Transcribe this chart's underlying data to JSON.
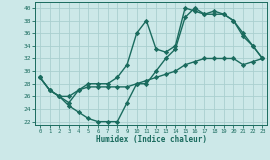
{
  "line1_x": [
    0,
    1,
    2,
    3,
    4,
    5,
    6,
    7,
    8,
    9,
    10,
    11,
    12,
    13,
    14,
    15,
    16,
    17,
    18,
    19,
    20,
    21,
    22,
    23
  ],
  "line1_y": [
    29,
    27,
    26,
    25,
    27,
    28,
    28,
    28,
    29,
    31,
    36,
    38,
    33.5,
    33,
    34,
    40,
    39.5,
    39,
    39.5,
    39,
    38,
    36,
    34,
    32
  ],
  "line2_x": [
    0,
    1,
    2,
    3,
    4,
    5,
    6,
    7,
    8,
    9,
    10,
    11,
    12,
    13,
    14,
    15,
    16,
    17,
    18,
    19,
    20,
    21,
    22,
    23
  ],
  "line2_y": [
    29,
    27,
    26,
    24.5,
    23.5,
    22.5,
    22,
    22,
    22,
    25,
    28,
    28,
    30,
    32,
    33.5,
    38.5,
    40,
    39,
    39,
    39,
    38,
    35.5,
    34,
    32
  ],
  "line3_x": [
    0,
    1,
    2,
    3,
    4,
    5,
    6,
    7,
    8,
    9,
    10,
    11,
    12,
    13,
    14,
    15,
    16,
    17,
    18,
    19,
    20,
    21,
    22,
    23
  ],
  "line3_y": [
    29,
    27,
    26,
    26,
    27,
    27.5,
    27.5,
    27.5,
    27.5,
    27.5,
    28,
    28.5,
    29,
    29.5,
    30,
    31,
    31.5,
    32,
    32,
    32,
    32,
    31,
    31.5,
    32
  ],
  "color": "#1a6b5e",
  "bg_color": "#cce8e8",
  "grid_color": "#aacfcf",
  "xlabel": "Humidex (Indice chaleur)",
  "ylim": [
    21.5,
    41
  ],
  "xlim": [
    -0.5,
    23.5
  ],
  "yticks": [
    22,
    24,
    26,
    28,
    30,
    32,
    34,
    36,
    38,
    40
  ],
  "xticks": [
    0,
    1,
    2,
    3,
    4,
    5,
    6,
    7,
    8,
    9,
    10,
    11,
    12,
    13,
    14,
    15,
    16,
    17,
    18,
    19,
    20,
    21,
    22,
    23
  ],
  "marker": "D",
  "markersize": 2.2,
  "linewidth": 1.0
}
